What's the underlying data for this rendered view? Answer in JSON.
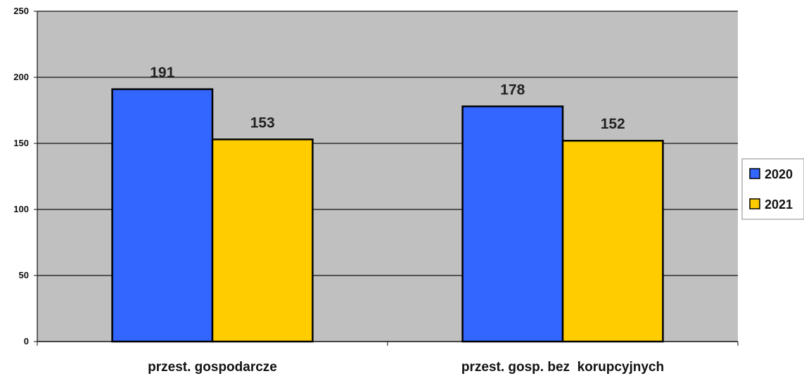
{
  "chart_data": {
    "type": "bar",
    "categories": [
      "przest. gospodarcze",
      "przest. gosp. bez  korupcyjnych"
    ],
    "series": [
      {
        "name": "2020",
        "values": [
          191,
          178
        ],
        "color": "#3366ff"
      },
      {
        "name": "2021",
        "values": [
          153,
          152
        ],
        "color": "#ffcc00"
      }
    ],
    "ylim": [
      0,
      250
    ],
    "yticks": [
      0,
      50,
      100,
      150,
      200,
      250
    ],
    "grid": true,
    "legend": "right",
    "plot_background": "#c0c0c0"
  }
}
